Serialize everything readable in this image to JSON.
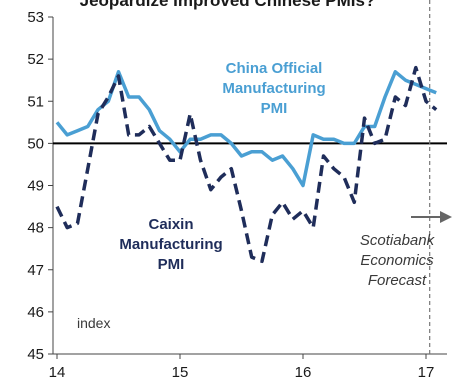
{
  "chart_data": {
    "type": "line",
    "title": "Jeopardize Improved Chinese PMIs?",
    "ylabel": "index",
    "ylim": [
      45,
      53
    ],
    "xlim": [
      14.0,
      17.1
    ],
    "yticks": [
      45,
      46,
      47,
      48,
      49,
      50,
      51,
      52,
      53
    ],
    "xticks": [
      14,
      15,
      16,
      17
    ],
    "reference_line": 50,
    "forecast_start": 17.03,
    "forecast_label": [
      "Scotiabank",
      "Economics",
      "Forecast"
    ],
    "series": [
      {
        "name": "China Official Manufacturing PMI",
        "label_lines": [
          "China Official",
          "Manufacturing",
          "PMI"
        ],
        "color": "#4a9fd3",
        "style": "solid",
        "x": [
          14.0,
          14.083,
          14.167,
          14.25,
          14.333,
          14.417,
          14.5,
          14.583,
          14.667,
          14.75,
          14.833,
          14.917,
          15.0,
          15.083,
          15.167,
          15.25,
          15.333,
          15.417,
          15.5,
          15.583,
          15.667,
          15.75,
          15.833,
          15.917,
          16.0,
          16.083,
          16.167,
          16.25,
          16.333,
          16.417,
          16.5,
          16.583,
          16.667,
          16.75,
          16.833,
          16.917,
          17.0,
          17.083
        ],
        "values": [
          50.5,
          50.2,
          50.3,
          50.4,
          50.8,
          51.0,
          51.7,
          51.1,
          51.1,
          50.8,
          50.3,
          50.1,
          49.8,
          50.1,
          50.1,
          50.2,
          50.2,
          50.0,
          49.7,
          49.8,
          49.8,
          49.6,
          49.7,
          49.4,
          49.0,
          50.2,
          50.1,
          50.1,
          50.0,
          50.0,
          50.4,
          50.4,
          51.1,
          51.7,
          51.5,
          51.4,
          51.3,
          51.2
        ]
      },
      {
        "name": "Caixin Manufacturing PMI",
        "label_lines": [
          "Caixin",
          "Manufacturing",
          "PMI"
        ],
        "color": "#1f2d5a",
        "style": "dashed",
        "x": [
          14.0,
          14.083,
          14.167,
          14.25,
          14.333,
          14.417,
          14.5,
          14.583,
          14.667,
          14.75,
          14.833,
          14.917,
          15.0,
          15.083,
          15.167,
          15.25,
          15.333,
          15.417,
          15.5,
          15.583,
          15.667,
          15.75,
          15.833,
          15.917,
          16.0,
          16.083,
          16.167,
          16.25,
          16.333,
          16.417,
          16.5,
          16.583,
          16.667,
          16.75,
          16.833,
          16.917,
          17.0,
          17.083
        ],
        "values": [
          48.5,
          48.0,
          48.1,
          49.4,
          50.7,
          51.1,
          51.6,
          50.2,
          50.2,
          50.4,
          50.0,
          49.6,
          49.6,
          50.7,
          49.6,
          48.9,
          49.2,
          49.4,
          48.4,
          47.3,
          47.2,
          48.3,
          48.6,
          48.2,
          48.4,
          48.0,
          49.7,
          49.4,
          49.2,
          48.6,
          50.6,
          50.0,
          50.1,
          51.1,
          50.9,
          51.8,
          51.0,
          50.8
        ]
      }
    ]
  }
}
